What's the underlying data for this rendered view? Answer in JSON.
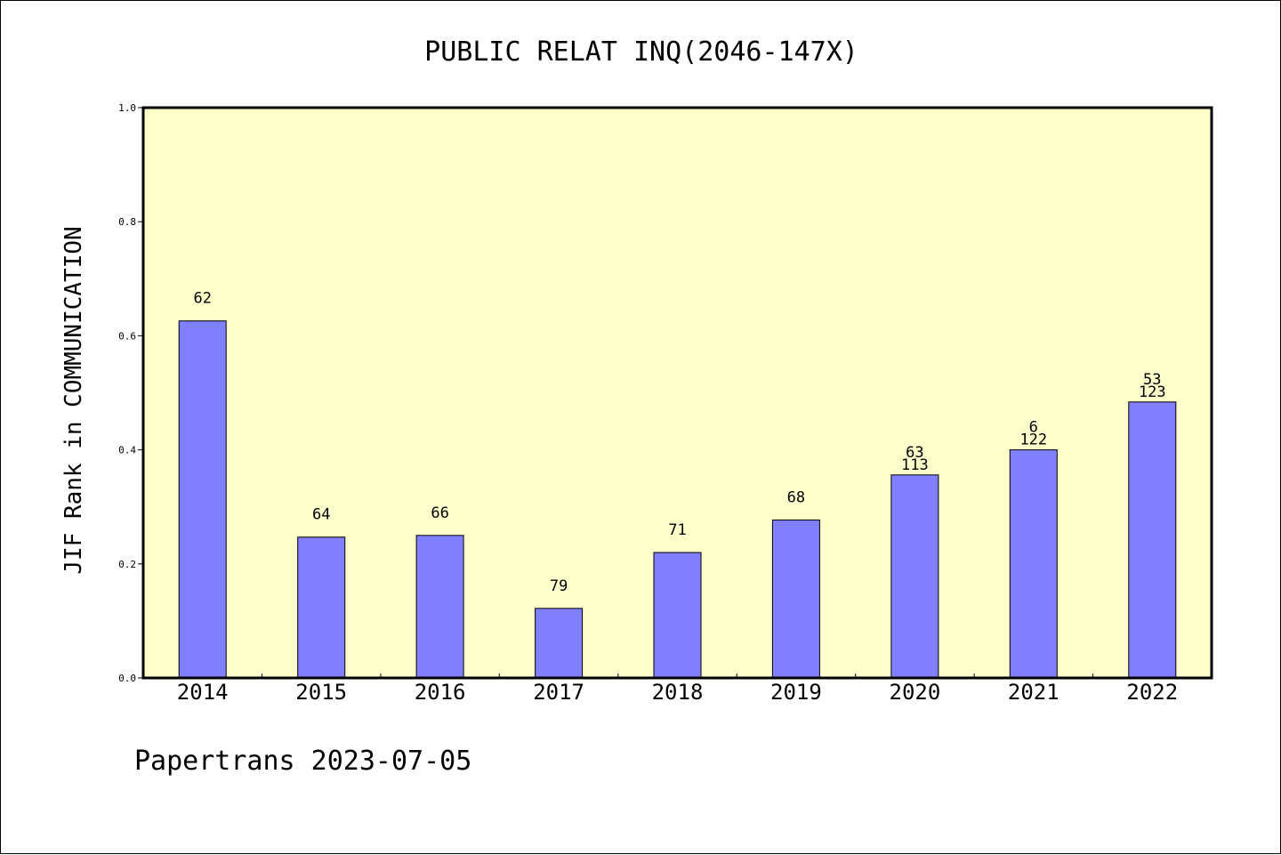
{
  "footer": "Papertrans 2023-07-05",
  "colors": {
    "background": "#ffffcc",
    "bar": "#8080ff",
    "page": "#ffffff"
  },
  "chart_data": {
    "type": "bar",
    "title": "PUBLIC RELAT INQ(2046-147X)",
    "xlabel": "",
    "ylabel": "JIF Rank in COMMUNICATION",
    "ylim": [
      0,
      1.0
    ],
    "yticks": [
      "0.0",
      "0.2",
      "0.4",
      "0.6",
      "0.8",
      "1.0"
    ],
    "grid": false,
    "categories": [
      "2014",
      "2015",
      "2016",
      "2017",
      "2018",
      "2019",
      "2020",
      "2021",
      "2022"
    ],
    "values": [
      0.626,
      0.247,
      0.25,
      0.122,
      0.22,
      0.277,
      0.356,
      0.4,
      0.484
    ],
    "labels": [
      [
        "62"
      ],
      [
        "64"
      ],
      [
        "66"
      ],
      [
        "79"
      ],
      [
        "71"
      ],
      [
        "68"
      ],
      [
        "63",
        "113"
      ],
      [
        "6",
        "122"
      ],
      [
        "53",
        "123"
      ]
    ]
  }
}
